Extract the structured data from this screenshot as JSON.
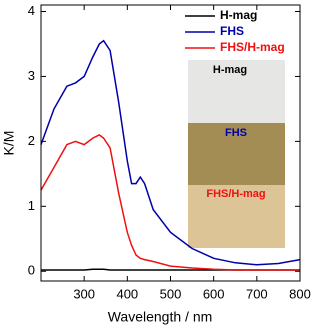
{
  "chart_data": {
    "type": "line",
    "x_label": "Wavelength / nm",
    "y_label": "K/M",
    "x": [
      200,
      230,
      260,
      280,
      300,
      320,
      335,
      345,
      360,
      380,
      400,
      410,
      420,
      430,
      440,
      460,
      500,
      550,
      600,
      650,
      700,
      750,
      800
    ],
    "series": [
      {
        "name": "H-mag",
        "color": "#000000",
        "values": [
          0.02,
          0.02,
          0.02,
          0.02,
          0.02,
          0.03,
          0.03,
          0.03,
          0.02,
          0.02,
          0.02,
          0.02,
          0.02,
          0.02,
          0.02,
          0.02,
          0.02,
          0.02,
          0.02,
          0.02,
          0.02,
          0.02,
          0.02
        ]
      },
      {
        "name": "FHS",
        "color": "#0000aa",
        "values": [
          1.95,
          2.5,
          2.85,
          2.9,
          3.0,
          3.3,
          3.5,
          3.55,
          3.4,
          2.6,
          1.7,
          1.35,
          1.35,
          1.45,
          1.35,
          0.95,
          0.6,
          0.35,
          0.2,
          0.13,
          0.1,
          0.12,
          0.18
        ]
      },
      {
        "name": "FHS/H-mag",
        "color": "#ee1111",
        "values": [
          1.25,
          1.6,
          1.95,
          2.0,
          1.95,
          2.05,
          2.1,
          2.05,
          1.9,
          1.2,
          0.6,
          0.4,
          0.25,
          0.2,
          0.18,
          0.15,
          0.08,
          0.05,
          0.03,
          0.02,
          0.02,
          0.02,
          0.02
        ]
      }
    ],
    "xlim": [
      200,
      800
    ],
    "xticks": [
      300,
      400,
      500,
      600,
      700,
      800
    ],
    "ylim": [
      -0.15,
      4.1
    ],
    "yticks": [
      0,
      1,
      2,
      3,
      4
    ],
    "legend": "top-right",
    "annotations": [
      {
        "text": "H-mag",
        "color": "#000000"
      },
      {
        "text": "FHS",
        "color": "#0000aa"
      },
      {
        "text": "FHS/H-mag",
        "color": "#ee1111"
      }
    ]
  }
}
